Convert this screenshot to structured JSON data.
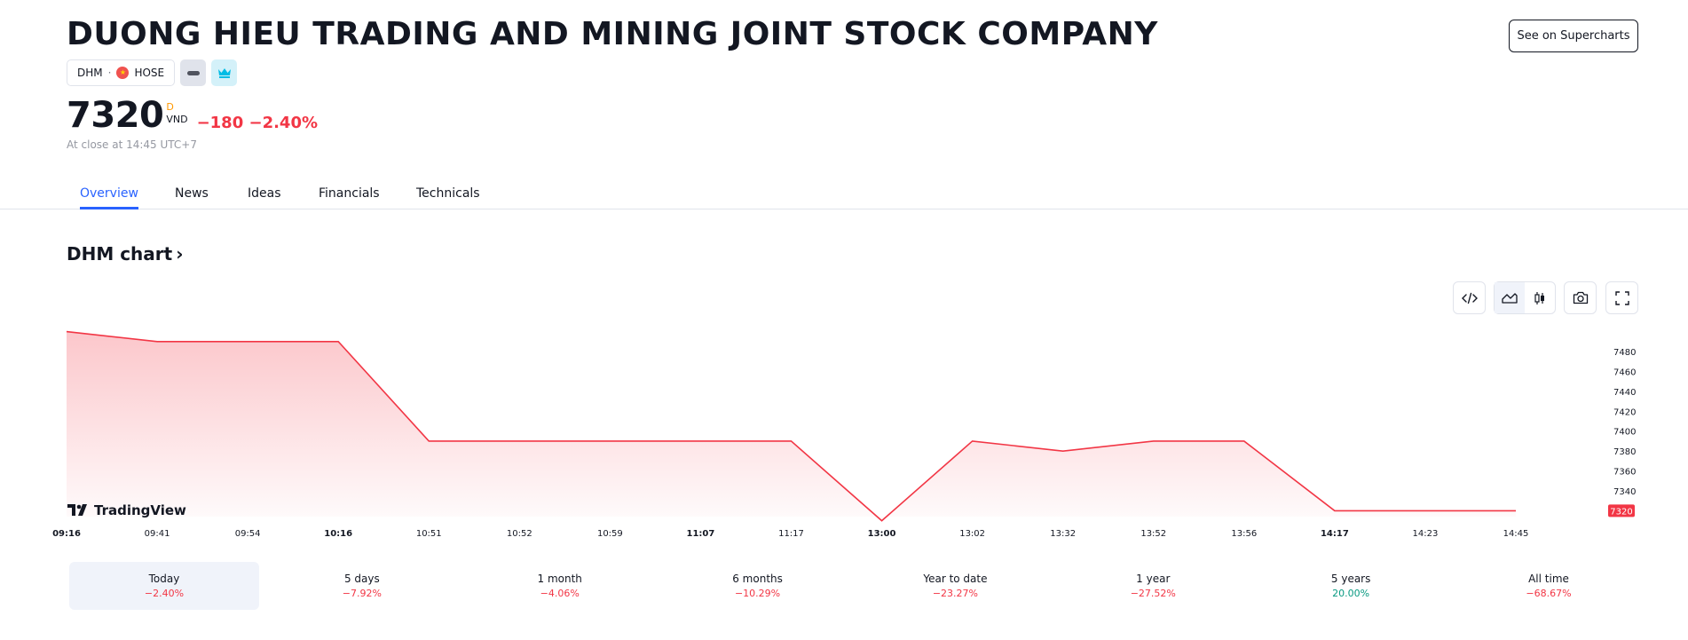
{
  "header": {
    "title": "DUONG HIEU TRADING AND MINING JOINT STOCK COMPANY",
    "ticker": "DHM",
    "exchange": "HOSE",
    "supercharts_label": "See on Supercharts"
  },
  "quote": {
    "price": "7320",
    "currency_flag": "D",
    "currency": "VND",
    "change": "−180 −2.40%",
    "close_note": "At close at 14:45 UTC+7",
    "change_color": "#f23645"
  },
  "tabs": [
    {
      "label": "Overview",
      "active": true
    },
    {
      "label": "News"
    },
    {
      "label": "Ideas"
    },
    {
      "label": "Financials"
    },
    {
      "label": "Technicals"
    }
  ],
  "chart_section": {
    "heading": "DHM chart",
    "logo_text": "TradingView",
    "icons": [
      "embed-icon",
      "area-chart-icon",
      "candles-icon",
      "camera-icon",
      "fullscreen-icon"
    ]
  },
  "chart_data": {
    "type": "area",
    "x": [
      "09:16",
      "09:41",
      "09:54",
      "10:16",
      "10:51",
      "10:52",
      "10:59",
      "11:07",
      "11:17",
      "13:00",
      "13:02",
      "13:32",
      "13:52",
      "13:56",
      "14:17",
      "14:23",
      "14:45"
    ],
    "values": [
      7500,
      7490,
      7490,
      7490,
      7390,
      7390,
      7390,
      7390,
      7390,
      7310,
      7390,
      7380,
      7390,
      7390,
      7320,
      7320,
      7320
    ],
    "y_ticks": [
      7480,
      7460,
      7440,
      7420,
      7400,
      7380,
      7360,
      7340
    ],
    "last_value_label": "7320",
    "bold_x_labels": [
      "09:16",
      "10:16",
      "11:07",
      "13:00",
      "14:17"
    ],
    "line_color": "#f23645",
    "fill_color": "#f23645",
    "grid": false
  },
  "periods": [
    {
      "label": "Today",
      "value": "−2.40%",
      "sign": "neg",
      "active": true
    },
    {
      "label": "5 days",
      "value": "−7.92%",
      "sign": "neg"
    },
    {
      "label": "1 month",
      "value": "−4.06%",
      "sign": "neg"
    },
    {
      "label": "6 months",
      "value": "−10.29%",
      "sign": "neg"
    },
    {
      "label": "Year to date",
      "value": "−23.27%",
      "sign": "neg"
    },
    {
      "label": "1 year",
      "value": "−27.52%",
      "sign": "neg"
    },
    {
      "label": "5 years",
      "value": "20.00%",
      "sign": "pos"
    },
    {
      "label": "All time",
      "value": "−68.67%",
      "sign": "neg"
    }
  ]
}
